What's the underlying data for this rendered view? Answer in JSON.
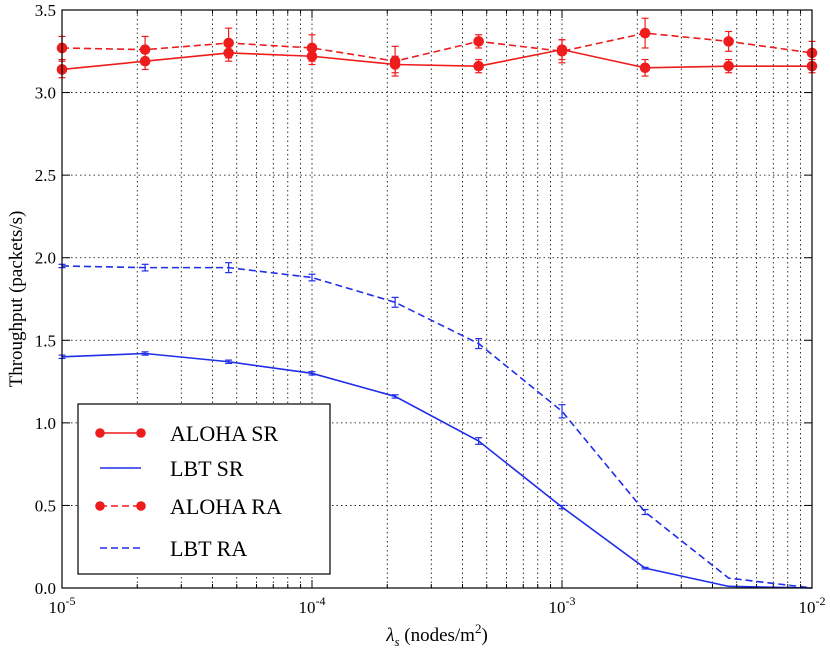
{
  "chart_data": {
    "type": "line",
    "xscale": "log",
    "xlim": [
      1e-05,
      0.01
    ],
    "ylim": [
      0.0,
      3.5
    ],
    "grid": true,
    "legend_position": "lower-left",
    "xlabel_symbol": "λ",
    "xlabel_subscript": "s",
    "xlabel_units_prefix": " (nodes/m",
    "xlabel_units_exp": "2",
    "xlabel_units_suffix": ")",
    "ylabel": "Throughput (packets/s)",
    "x_ticks": [
      {
        "base": "10",
        "exp": "-5",
        "value": 1e-05
      },
      {
        "base": "10",
        "exp": "-4",
        "value": 0.0001
      },
      {
        "base": "10",
        "exp": "-3",
        "value": 0.001
      },
      {
        "base": "10",
        "exp": "-2",
        "value": 0.01
      }
    ],
    "y_ticks": [
      "0.0",
      "0.5",
      "1.0",
      "1.5",
      "2.0",
      "2.5",
      "3.0",
      "3.5"
    ],
    "x": [
      1e-05,
      2.15e-05,
      4.64e-05,
      0.0001,
      0.000215,
      0.000464,
      0.001,
      0.00215,
      0.00464,
      0.01
    ],
    "series": [
      {
        "name": "ALOHA SR",
        "color": "#ee1c1c",
        "dash": "solid",
        "marker": "circle",
        "values": [
          3.14,
          3.19,
          3.24,
          3.22,
          3.17,
          3.16,
          3.26,
          3.15,
          3.16,
          3.16
        ],
        "errors": [
          0.05,
          0.05,
          0.05,
          0.05,
          0.05,
          0.04,
          0.06,
          0.05,
          0.04,
          0.04
        ]
      },
      {
        "name": "LBT SR",
        "color": "#1f2ee8",
        "dash": "solid",
        "marker": "none",
        "values": [
          1.4,
          1.42,
          1.37,
          1.3,
          1.16,
          0.89,
          0.49,
          0.12,
          0.01,
          0.0
        ],
        "errors": [
          0.01,
          0.01,
          0.01,
          0.01,
          0.01,
          0.02,
          0.01,
          0.005,
          0.0,
          0.0
        ]
      },
      {
        "name": "ALOHA RA",
        "color": "#ee1c1c",
        "dash": "dashed",
        "marker": "circle",
        "values": [
          3.27,
          3.26,
          3.3,
          3.27,
          3.19,
          3.31,
          3.25,
          3.36,
          3.31,
          3.24
        ],
        "errors": [
          0.07,
          0.08,
          0.09,
          0.08,
          0.09,
          0.04,
          0.07,
          0.09,
          0.06,
          0.07
        ]
      },
      {
        "name": "LBT RA",
        "color": "#1f2ee8",
        "dash": "dashed",
        "marker": "none",
        "values": [
          1.95,
          1.94,
          1.94,
          1.88,
          1.73,
          1.48,
          1.07,
          0.46,
          0.06,
          0.0
        ],
        "errors": [
          0.01,
          0.02,
          0.03,
          0.02,
          0.03,
          0.03,
          0.04,
          0.015,
          0.0,
          0.0
        ]
      }
    ]
  }
}
